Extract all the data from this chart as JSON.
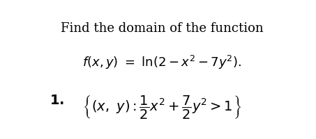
{
  "background_color": "#ffffff",
  "title_text": "Find the domain of the function",
  "title_fontsize": 13,
  "function_fontsize": 13,
  "answer_fontsize": 14,
  "figsize": [
    4.53,
    2.01
  ],
  "dpi": 100
}
